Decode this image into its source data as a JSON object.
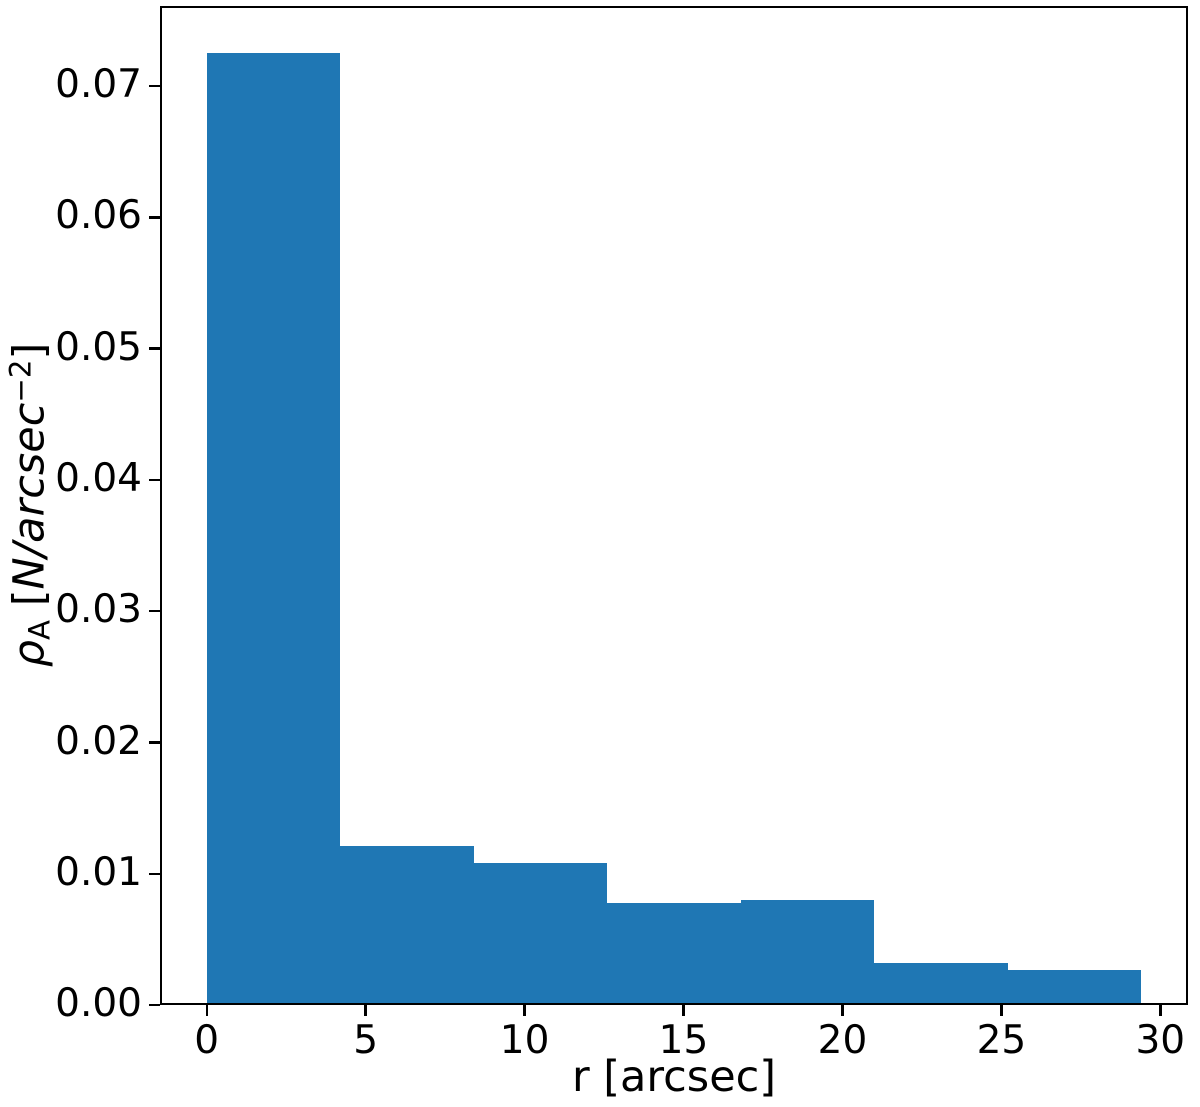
{
  "chart_data": {
    "type": "bar",
    "subtype": "histogram",
    "title": "",
    "xlabel": "r [arcsec]",
    "ylabel": "ρ_A [N/arcsec⁻²]",
    "bin_edges": [
      0,
      4.2,
      8.4,
      12.6,
      16.8,
      21.0,
      25.2,
      29.4
    ],
    "values": [
      0.0725,
      0.0121,
      0.0108,
      0.0078,
      0.008,
      0.0032,
      0.0027
    ],
    "x_ticks": [
      0,
      5,
      10,
      15,
      20,
      25,
      30
    ],
    "y_ticks": [
      "0.00",
      "0.01",
      "0.02",
      "0.03",
      "0.04",
      "0.05",
      "0.06",
      "0.07"
    ],
    "xlim": [
      -1.47,
      30.87
    ],
    "ylim": [
      0,
      0.0761
    ],
    "bar_color": "#1f77b4",
    "grid": false,
    "legend": null
  },
  "labels": {
    "xlabel": "r [arcsec]",
    "ylabel_rho": "ρ",
    "ylabel_sub": "A",
    "ylabel_open": " [",
    "ylabel_units": "N/arcsec",
    "ylabel_sup": "−2",
    "ylabel_close": "]"
  }
}
